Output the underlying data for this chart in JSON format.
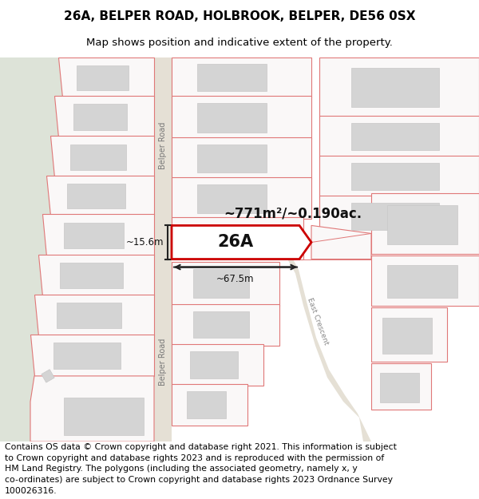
{
  "title": "26A, BELPER ROAD, HOLBROOK, BELPER, DE56 0SX",
  "subtitle": "Map shows position and indicative extent of the property.",
  "footer_text": "Contains OS data © Crown copyright and database right 2021. This information is subject\nto Crown copyright and database rights 2023 and is reproduced with the permission of\nHM Land Registry. The polygons (including the associated geometry, namely x, y\nco-ordinates) are subject to Crown copyright and database rights 2023 Ordnance Survey\n100026316.",
  "map_bg": "#f8f8f6",
  "left_bg": "#eef0eb",
  "road_color": "#e5e0d5",
  "plot_outline_color": "#e07878",
  "plot_fill_color": "#faf8f8",
  "highlight_color": "#cc0000",
  "building_fill": "#d4d4d4",
  "building_outline": "#c8c8c8",
  "dim_line_color": "#222222",
  "label_26a": "26A",
  "area_label": "~771m²/~0.190ac.",
  "dim_width": "~67.5m",
  "dim_height": "~15.6m",
  "road_label1": "Belper Road",
  "road_label2": "Belper Road",
  "road_label3": "East Crescent",
  "title_fontsize": 11,
  "subtitle_fontsize": 9.5,
  "footer_fontsize": 7.8
}
